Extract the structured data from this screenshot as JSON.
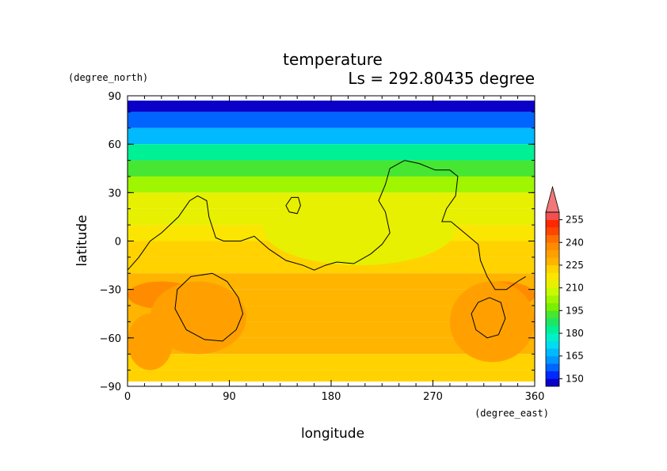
{
  "chart_data": {
    "type": "heatmap",
    "title": "temperature",
    "subtitle": "Ls = 292.80435 degree",
    "xlabel": "longitude",
    "ylabel": "latitude",
    "x_unit": "(degree_east)",
    "y_unit": "(degree_north)",
    "xlim": [
      0,
      360
    ],
    "ylim": [
      -90,
      90
    ],
    "x_ticks": [
      0,
      90,
      180,
      270,
      360
    ],
    "y_ticks": [
      90,
      60,
      30,
      0,
      -30,
      -60,
      -90
    ],
    "x_tick_labels": [
      "0",
      "90",
      "180",
      "270",
      "360"
    ],
    "y_tick_labels": [
      "90",
      "60",
      "30",
      "0",
      "−30",
      "−60",
      "−90"
    ],
    "colorbar": {
      "levels": [
        145,
        150,
        155,
        160,
        165,
        170,
        175,
        180,
        185,
        190,
        195,
        200,
        205,
        210,
        215,
        220,
        225,
        230,
        235,
        240,
        245,
        250,
        255,
        260
      ],
      "tick_labels": [
        "150",
        "165",
        "180",
        "195",
        "210",
        "225",
        "240",
        "255"
      ],
      "tick_values": [
        150,
        165,
        180,
        195,
        210,
        225,
        240,
        255
      ],
      "colors": [
        "#0a00c8",
        "#0028ff",
        "#0064ff",
        "#0096ff",
        "#00b9ff",
        "#00dcf0",
        "#00f0c8",
        "#00f096",
        "#1ee664",
        "#46e632",
        "#78f000",
        "#a0f500",
        "#c8fa00",
        "#e6f000",
        "#fae600",
        "#ffd200",
        "#ffb400",
        "#ffa000",
        "#ff8c00",
        "#ff6e00",
        "#ff4600",
        "#ff2800",
        "#f05050"
      ],
      "extend_color": "#f07878"
    },
    "latitudes": [
      87,
      80,
      70,
      60,
      50,
      40,
      30,
      20,
      10,
      0,
      -10,
      -20,
      -30,
      -40,
      -50,
      -60,
      -70,
      -80,
      -87
    ],
    "zonal_profile": [
      147,
      152,
      163,
      176,
      189,
      200,
      208,
      213,
      216,
      218,
      222,
      225,
      225,
      226,
      226,
      225,
      225,
      224,
      224
    ],
    "regions": [
      {
        "lon": [
          0,
          60
        ],
        "lat": [
          -42,
          -25
        ],
        "value": 236
      },
      {
        "lon": [
          300,
          360
        ],
        "lat": [
          -42,
          -25
        ],
        "value": 236
      },
      {
        "lon": [
          20,
          105
        ],
        "lat": [
          -70,
          -25
        ],
        "value": 230
      },
      {
        "lon": [
          285,
          360
        ],
        "lat": [
          -75,
          -25
        ],
        "value": 230
      },
      {
        "lon": [
          120,
          290
        ],
        "lat": [
          -15,
          30
        ],
        "value": 214
      },
      {
        "lon": [
          0,
          40
        ],
        "lat": [
          -80,
          -45
        ],
        "value": 231
      }
    ],
    "contour_outline": [
      [
        0,
        -18
      ],
      [
        10,
        -10
      ],
      [
        20,
        0
      ],
      [
        30,
        5
      ],
      [
        45,
        15
      ],
      [
        55,
        25
      ],
      [
        62,
        28
      ],
      [
        70,
        25
      ],
      [
        72,
        15
      ],
      [
        78,
        2
      ],
      [
        85,
        0
      ],
      [
        100,
        0
      ],
      [
        112,
        3
      ],
      [
        125,
        -5
      ],
      [
        140,
        -12
      ],
      [
        155,
        -15
      ],
      [
        165,
        -18
      ],
      [
        175,
        -15
      ],
      [
        185,
        -13
      ],
      [
        200,
        -14
      ],
      [
        215,
        -8
      ],
      [
        225,
        -2
      ],
      [
        232,
        5
      ],
      [
        228,
        18
      ],
      [
        222,
        25
      ],
      [
        228,
        35
      ],
      [
        232,
        45
      ],
      [
        245,
        50
      ],
      [
        258,
        48
      ],
      [
        272,
        44
      ],
      [
        285,
        44
      ],
      [
        292,
        40
      ],
      [
        290,
        28
      ],
      [
        282,
        20
      ],
      [
        278,
        12
      ],
      [
        286,
        12
      ],
      [
        298,
        5
      ],
      [
        310,
        -2
      ],
      [
        312,
        -12
      ],
      [
        318,
        -22
      ],
      [
        325,
        -30
      ],
      [
        335,
        -30
      ],
      [
        345,
        -25
      ],
      [
        352,
        -22
      ]
    ],
    "contour_islands": [
      [
        [
          140,
          22
        ],
        [
          145,
          27
        ],
        [
          151,
          27
        ],
        [
          153,
          22
        ],
        [
          150,
          17
        ],
        [
          143,
          18
        ],
        [
          140,
          22
        ]
      ],
      [
        [
          75,
          -20
        ],
        [
          88,
          -25
        ],
        [
          98,
          -35
        ],
        [
          102,
          -45
        ],
        [
          96,
          -55
        ],
        [
          84,
          -62
        ],
        [
          68,
          -61
        ],
        [
          52,
          -55
        ],
        [
          42,
          -42
        ],
        [
          44,
          -30
        ],
        [
          56,
          -22
        ],
        [
          75,
          -20
        ]
      ],
      [
        [
          320,
          -35
        ],
        [
          330,
          -38
        ],
        [
          334,
          -48
        ],
        [
          328,
          -58
        ],
        [
          318,
          -60
        ],
        [
          308,
          -55
        ],
        [
          304,
          -45
        ],
        [
          310,
          -38
        ],
        [
          320,
          -35
        ]
      ]
    ]
  }
}
